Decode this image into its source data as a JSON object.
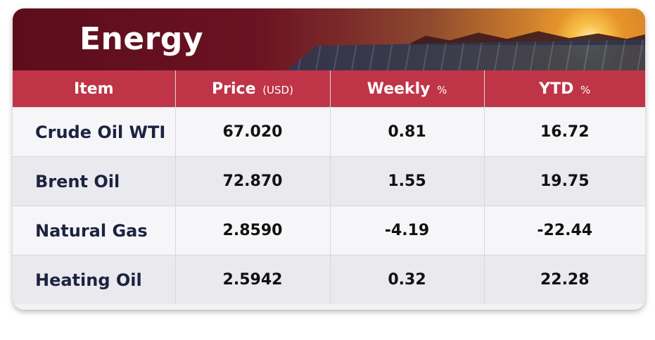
{
  "title": "Energy",
  "headers": [
    {
      "label": "Item",
      "unit": ""
    },
    {
      "label": "Price",
      "unit": "(USD)"
    },
    {
      "label": "Weekly",
      "unit": "%"
    },
    {
      "label": "YTD",
      "unit": "%"
    }
  ],
  "rows": [
    {
      "item": "Crude Oil WTI",
      "price": "67.020",
      "weekly": "0.81",
      "ytd": "16.72"
    },
    {
      "item": "Brent Oil",
      "price": "72.870",
      "weekly": "1.55",
      "ytd": "19.75"
    },
    {
      "item": "Natural Gas",
      "price": "2.8590",
      "weekly": "-4.19",
      "ytd": "-22.44"
    },
    {
      "item": "Heating Oil",
      "price": "2.5942",
      "weekly": "0.32",
      "ytd": "22.28"
    }
  ],
  "colors": {
    "banner": "#5c0d1c",
    "header": "#bf3547",
    "item_text": "#1c2340"
  }
}
